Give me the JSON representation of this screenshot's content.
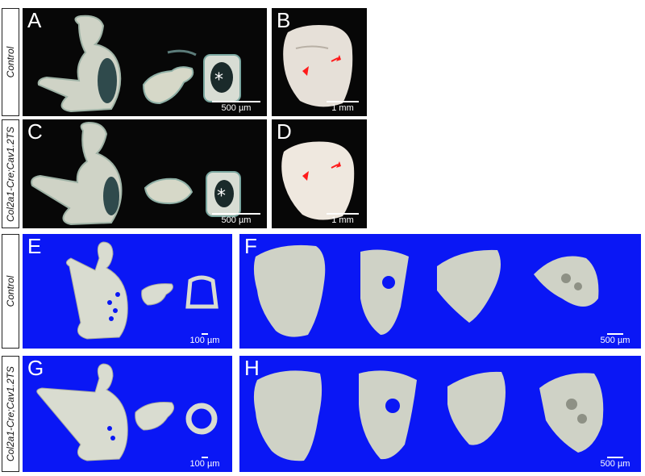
{
  "figure": {
    "row_labels": {
      "top_control": "Control",
      "top_mutant": "Col2a1-Cre;Cav1.2TS",
      "bottom_control": "Control",
      "bottom_mutant": "Col2a1-Cre;Cav1.2TS"
    },
    "panels": {
      "A": {
        "letter": "A",
        "scale": "500  µm"
      },
      "B": {
        "letter": "B",
        "scale": "1 mm"
      },
      "C": {
        "letter": "C",
        "scale": "500  µm"
      },
      "D": {
        "letter": "D",
        "scale": "1 mm"
      },
      "E": {
        "letter": "E",
        "scale": "100 µm"
      },
      "F": {
        "letter": "F",
        "scale": "500 µm"
      },
      "G": {
        "letter": "G",
        "scale": "100 µm"
      },
      "H": {
        "letter": "H",
        "scale": "500 µm"
      }
    },
    "colors": {
      "photo_background": "#070707",
      "microct_background": "#0a17f5",
      "bone": "#d9dcd0",
      "arrow": "#ff1a1a"
    }
  }
}
